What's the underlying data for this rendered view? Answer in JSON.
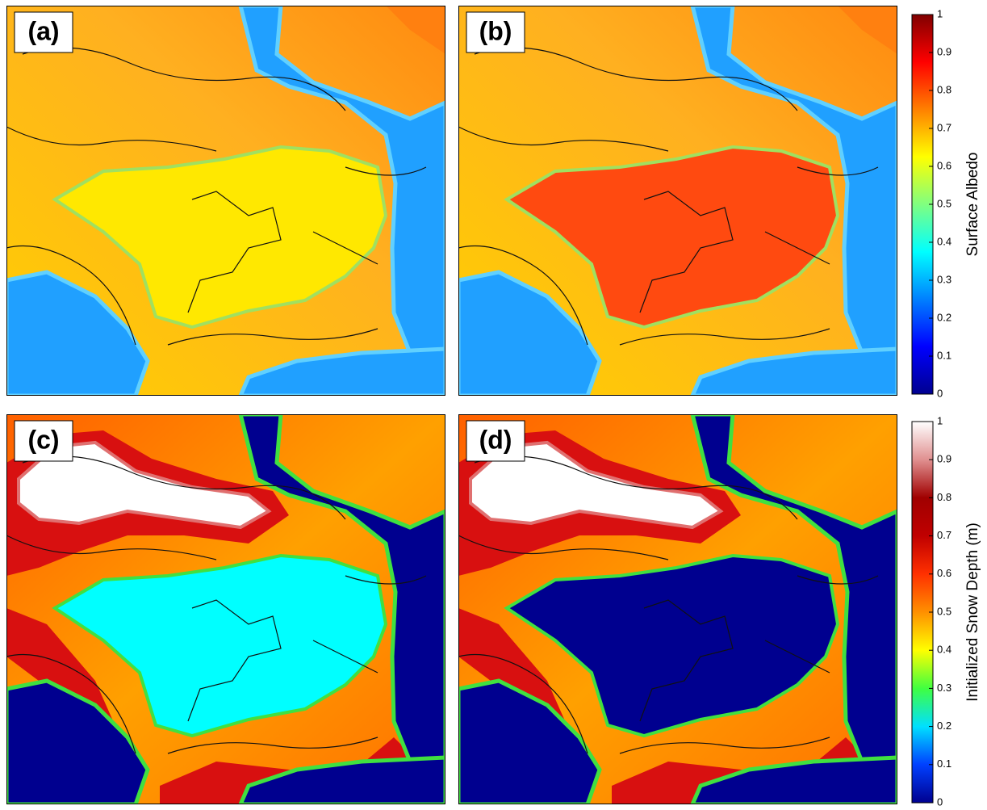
{
  "panels": [
    {
      "label": "(a)"
    },
    {
      "label": "(b)"
    },
    {
      "label": "(c)"
    },
    {
      "label": "(d)"
    }
  ],
  "colorbars": [
    {
      "label": "Surface Albedo",
      "ylim": [
        0,
        1
      ],
      "yticks": [
        0,
        0.1,
        0.2,
        0.3,
        0.4,
        0.5,
        0.6,
        0.7,
        0.8,
        0.9,
        1
      ],
      "colors": [
        "#00008f",
        "#0000ff",
        "#0080ff",
        "#00ffff",
        "#80ff80",
        "#ffff00",
        "#ff8000",
        "#ff0000",
        "#800000"
      ]
    },
    {
      "label": "Initialized Snow Depth (m)",
      "ylim": [
        0,
        1
      ],
      "yticks": [
        0,
        0.1,
        0.2,
        0.3,
        0.4,
        0.5,
        0.6,
        0.7,
        0.8,
        0.9,
        1
      ],
      "colors": [
        "#00008f",
        "#0040ff",
        "#00e0ff",
        "#40ff40",
        "#ffff00",
        "#ff9000",
        "#ff3000",
        "#c00000",
        "#a00000",
        "#e09090",
        "#ffffff"
      ]
    }
  ]
}
